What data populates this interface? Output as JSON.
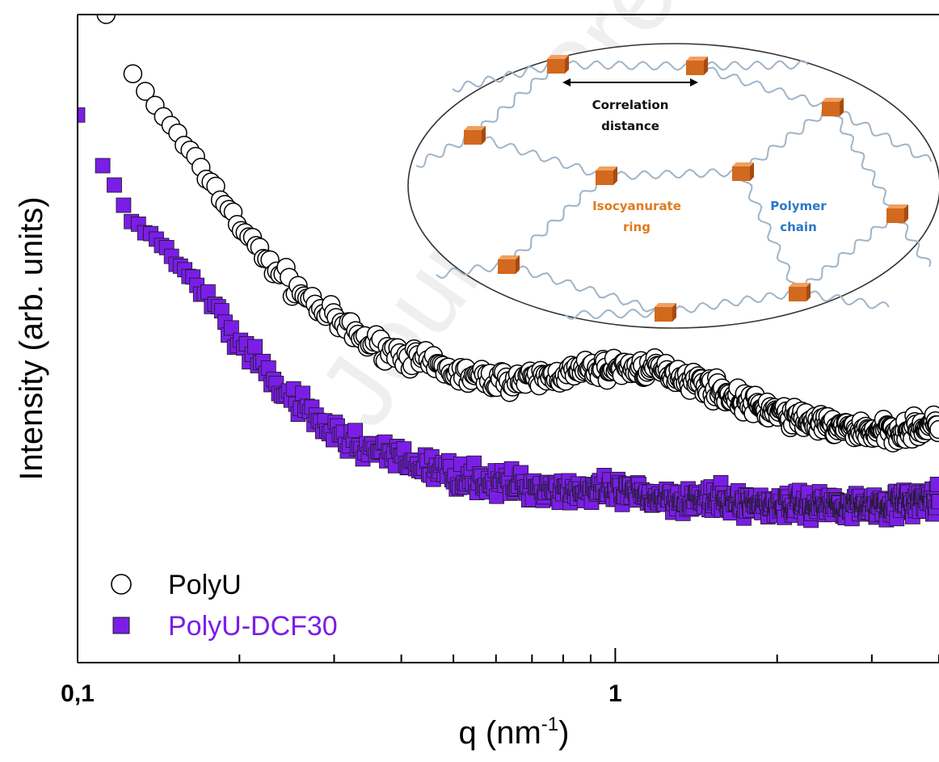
{
  "chart_data": {
    "type": "scatter",
    "title": "",
    "xlabel": "q (nm",
    "xlabel_sup": "-1",
    "xlabel_close": ")",
    "ylabel": "Intensity (arb. units)",
    "xscale": "log",
    "xlim": [
      0.1,
      4.0
    ],
    "ylim": [
      0,
      100
    ],
    "y_ticks_shown": false,
    "x_tick_labels": [
      {
        "value": 0.1,
        "label": "0,1"
      },
      {
        "value": 1,
        "label": "1"
      }
    ],
    "grid": false,
    "legend_position": "bottom-left",
    "series": [
      {
        "name": "PolyU",
        "marker": "circle-open",
        "color": "#000000",
        "anchors": [
          [
            0.113,
            100
          ],
          [
            0.12,
            94.2
          ],
          [
            0.125,
            91.6
          ],
          [
            0.13,
            89.5
          ],
          [
            0.14,
            85.6
          ],
          [
            0.15,
            82.7
          ],
          [
            0.16,
            79.1
          ],
          [
            0.17,
            76.3
          ],
          [
            0.18,
            73.1
          ],
          [
            0.19,
            70.5
          ],
          [
            0.2,
            67.5
          ],
          [
            0.22,
            63.0
          ],
          [
            0.25,
            58.4
          ],
          [
            0.28,
            54.9
          ],
          [
            0.31,
            52.0
          ],
          [
            0.35,
            49.4
          ],
          [
            0.4,
            47.6
          ],
          [
            0.45,
            46.1
          ],
          [
            0.5,
            44.8
          ],
          [
            0.55,
            44.0
          ],
          [
            0.6,
            43.6
          ],
          [
            0.7,
            43.6
          ],
          [
            0.8,
            44.5
          ],
          [
            0.9,
            45.2
          ],
          [
            1.0,
            45.4
          ],
          [
            1.1,
            45.5
          ],
          [
            1.2,
            45.2
          ],
          [
            1.3,
            44.5
          ],
          [
            1.5,
            42.6
          ],
          [
            1.7,
            40.5
          ],
          [
            2.0,
            38.6
          ],
          [
            2.5,
            36.5
          ],
          [
            3.0,
            35.6
          ],
          [
            3.5,
            35.9
          ],
          [
            4.0,
            36.7
          ]
        ]
      },
      {
        "name": "PolyU-DCF30",
        "marker": "square-filled",
        "color": "#7a1ee6",
        "anchors": [
          [
            0.1,
            84.5
          ],
          [
            0.108,
            78.6
          ],
          [
            0.115,
            74.8
          ],
          [
            0.125,
            68.6
          ],
          [
            0.14,
            65.2
          ],
          [
            0.16,
            59.7
          ],
          [
            0.18,
            55.0
          ],
          [
            0.2,
            48.6
          ],
          [
            0.22,
            45.4
          ],
          [
            0.25,
            40.4
          ],
          [
            0.28,
            37.3
          ],
          [
            0.3,
            35.4
          ],
          [
            0.35,
            32.9
          ],
          [
            0.4,
            31.3
          ],
          [
            0.5,
            29.0
          ],
          [
            0.6,
            27.7
          ],
          [
            0.8,
            26.8
          ],
          [
            1.0,
            26.1
          ],
          [
            1.5,
            25.0
          ],
          [
            2.0,
            24.4
          ],
          [
            3.0,
            24.3
          ],
          [
            4.0,
            25.1
          ]
        ]
      }
    ]
  },
  "inset": {
    "label_correlation": "Correlation",
    "label_distance": "distance",
    "label_isocyanurate": "Isocyanurate",
    "label_ring": "ring",
    "label_polymer": "Polymer",
    "label_chain": "chain",
    "ring_color": "#d2691e",
    "chain_color": "#9fb4c8",
    "iso_label_color": "#e07b20",
    "polymer_label_color": "#2878c8"
  },
  "watermark": "Journal Pre"
}
